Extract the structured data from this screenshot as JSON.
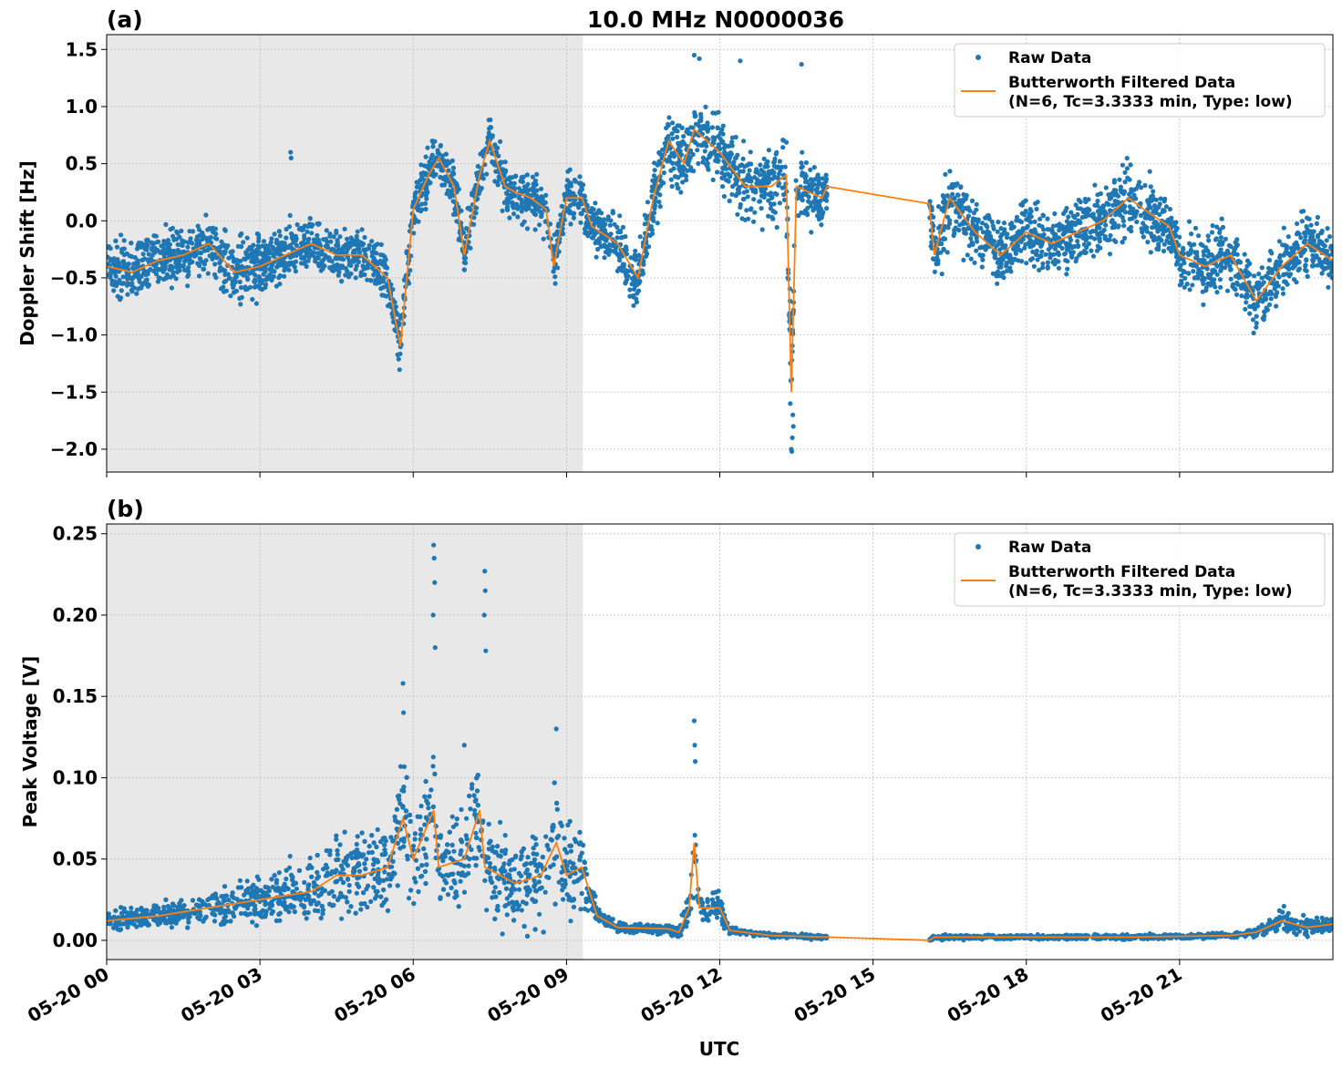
{
  "chart_data": {
    "title": "10.0 MHz N0000036",
    "xlabel": "UTC",
    "x_unit": "hours since 05-20 00 UTC",
    "xlim": [
      0,
      24
    ],
    "x_ticks": [
      0,
      3,
      6,
      9,
      12,
      15,
      18,
      21
    ],
    "x_tick_labels": [
      "05-20 00",
      "05-20 03",
      "05-20 06",
      "05-20 09",
      "05-20 12",
      "05-20 15",
      "05-20 18",
      "05-20 21"
    ],
    "shaded_interval": [
      0,
      9.32
    ],
    "colors": {
      "raw": "#1f77b4",
      "filtered": "#ff7f0e",
      "shade": "#e8e8e8"
    },
    "data_gap": [
      14.1,
      16.1
    ],
    "panels": [
      {
        "label": "(a)",
        "type": "scatter+line",
        "ylabel": "Doppler Shift [Hz]",
        "ylim": [
          -2.2,
          1.63
        ],
        "y_ticks": [
          -2.0,
          -1.5,
          -1.0,
          -0.5,
          0.0,
          0.5,
          1.0,
          1.5
        ],
        "y_tick_labels": [
          "−2.0",
          "−1.5",
          "−1.0",
          "−0.5",
          "0.0",
          "0.5",
          "1.0",
          "1.5"
        ],
        "grid": true,
        "legend": {
          "position": "top-right",
          "entries": [
            "Raw Data",
            "Butterworth Filtered Data",
            "(N=6, Tc=3.3333 min, Type: low)"
          ]
        },
        "filtered": {
          "x": [
            0,
            0.5,
            1,
            1.5,
            2,
            2.5,
            3,
            3.5,
            4,
            4.5,
            5,
            5.5,
            5.75,
            6,
            6.3,
            6.5,
            6.8,
            7,
            7.3,
            7.5,
            7.8,
            8,
            8.3,
            8.6,
            8.75,
            9,
            9.3,
            9.5,
            10,
            10.4,
            10.7,
            11,
            11.3,
            11.5,
            12,
            12.5,
            13,
            13.3,
            13.4,
            13.5,
            14,
            14.1,
            16.1,
            16.2,
            16.5,
            17,
            17.5,
            18,
            18.5,
            19,
            19.5,
            20,
            20.3,
            20.8,
            21,
            21.5,
            22,
            22.5,
            23,
            23.5,
            24
          ],
          "y": [
            -0.4,
            -0.45,
            -0.35,
            -0.3,
            -0.2,
            -0.45,
            -0.4,
            -0.3,
            -0.2,
            -0.3,
            -0.3,
            -0.5,
            -1.1,
            0.1,
            0.4,
            0.55,
            0.3,
            -0.3,
            0.4,
            0.7,
            0.3,
            0.25,
            0.2,
            0.1,
            -0.4,
            0.2,
            0.2,
            -0.05,
            -0.2,
            -0.5,
            0.2,
            0.7,
            0.5,
            0.8,
            0.6,
            0.3,
            0.3,
            0.4,
            -1.5,
            0.3,
            0.2,
            0.3,
            0.15,
            -0.3,
            0.2,
            -0.1,
            -0.3,
            -0.1,
            -0.2,
            -0.1,
            0.0,
            0.2,
            0.1,
            -0.05,
            -0.3,
            -0.4,
            -0.3,
            -0.7,
            -0.4,
            -0.2,
            -0.35
          ],
          "raw_spread": [
            0.35,
            0.35,
            0.35,
            0.35,
            0.35,
            0.4,
            0.4,
            0.35,
            0.3,
            0.3,
            0.3,
            0.35,
            0.3,
            0.35,
            0.35,
            0.3,
            0.3,
            0.3,
            0.3,
            0.3,
            0.3,
            0.3,
            0.3,
            0.3,
            0.3,
            0.3,
            0.3,
            0.3,
            0.35,
            0.4,
            0.4,
            0.4,
            0.45,
            0.45,
            0.4,
            0.45,
            0.45,
            0.5,
            0.5,
            0.4,
            0.35,
            0.35,
            0.4,
            0.45,
            0.45,
            0.4,
            0.4,
            0.4,
            0.4,
            0.4,
            0.4,
            0.45,
            0.4,
            0.35,
            0.4,
            0.4,
            0.4,
            0.45,
            0.4,
            0.4,
            0.3
          ]
        },
        "outliers": {
          "x": [
            13.4,
            13.42,
            13.44,
            13.38,
            13.41,
            13.43,
            13.39,
            11.5,
            11.6,
            12.4,
            13.6,
            3.6,
            3.61
          ],
          "y": [
            -2.0,
            -1.9,
            -1.8,
            -1.6,
            -2.02,
            -1.7,
            -1.4,
            1.45,
            1.42,
            1.4,
            1.37,
            0.6,
            0.55
          ]
        }
      },
      {
        "label": "(b)",
        "type": "scatter+line",
        "ylabel": "Peak Voltage [V]",
        "ylim": [
          -0.0118,
          0.256
        ],
        "y_ticks": [
          0.0,
          0.05,
          0.1,
          0.15,
          0.2,
          0.25
        ],
        "y_tick_labels": [
          "0.00",
          "0.05",
          "0.10",
          "0.15",
          "0.20",
          "0.25"
        ],
        "grid": true,
        "legend": {
          "position": "top-right",
          "entries": [
            "Raw Data",
            "Butterworth Filtered Data",
            "(N=6, Tc=3.3333 min, Type: low)"
          ]
        },
        "filtered": {
          "x": [
            0,
            1,
            2,
            3,
            4,
            4.5,
            5,
            5.5,
            5.8,
            6,
            6.4,
            6.5,
            7,
            7.3,
            7.4,
            8,
            8.5,
            8.8,
            9,
            9.3,
            9.6,
            10,
            11,
            11.2,
            11.4,
            11.5,
            11.6,
            12,
            12.2,
            13,
            14.1,
            16.1,
            16.2,
            20,
            22,
            22.5,
            23,
            23.5,
            24
          ],
          "y": [
            0.012,
            0.015,
            0.02,
            0.025,
            0.03,
            0.04,
            0.04,
            0.045,
            0.075,
            0.05,
            0.08,
            0.045,
            0.05,
            0.08,
            0.045,
            0.035,
            0.04,
            0.06,
            0.04,
            0.045,
            0.015,
            0.008,
            0.007,
            0.005,
            0.02,
            0.06,
            0.02,
            0.02,
            0.006,
            0.003,
            0.002,
            0.0,
            0.002,
            0.002,
            0.003,
            0.005,
            0.012,
            0.008,
            0.01
          ],
          "raw_spread": [
            0.008,
            0.01,
            0.014,
            0.02,
            0.028,
            0.035,
            0.035,
            0.04,
            0.05,
            0.045,
            0.05,
            0.04,
            0.045,
            0.05,
            0.04,
            0.035,
            0.04,
            0.05,
            0.04,
            0.035,
            0.008,
            0.004,
            0.004,
            0.004,
            0.02,
            0.04,
            0.015,
            0.012,
            0.003,
            0.002,
            0.002,
            0.002,
            0.002,
            0.002,
            0.002,
            0.004,
            0.012,
            0.008,
            0.008
          ]
        },
        "outliers": {
          "x": [
            6.4,
            6.41,
            6.42,
            6.39,
            6.43,
            7.4,
            7.41,
            7.39,
            7.42,
            5.8,
            5.81,
            11.5,
            11.51,
            11.52,
            7.0,
            8.8
          ],
          "y": [
            0.243,
            0.235,
            0.22,
            0.2,
            0.18,
            0.227,
            0.215,
            0.2,
            0.178,
            0.158,
            0.14,
            0.135,
            0.12,
            0.11,
            0.12,
            0.13
          ]
        }
      }
    ]
  }
}
